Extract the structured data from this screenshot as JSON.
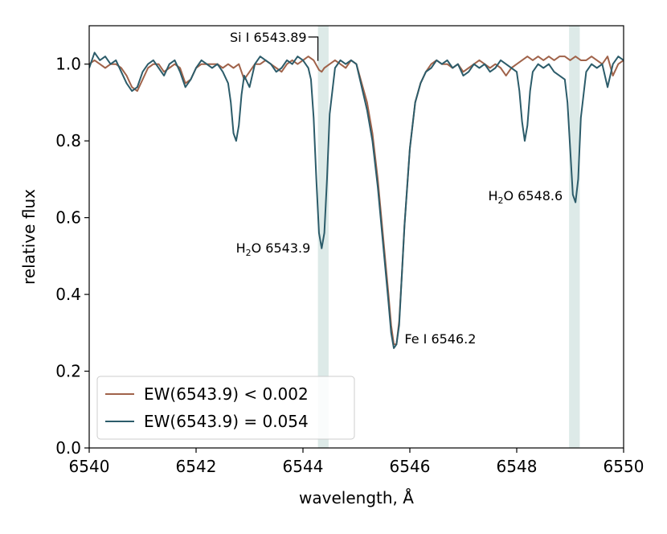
{
  "chart_data": {
    "type": "line",
    "xlabel": "wavelength, Å",
    "ylabel": "relative flux",
    "xlim": [
      6540,
      6550
    ],
    "ylim": [
      0.0,
      1.1
    ],
    "xticks": [
      6540,
      6542,
      6544,
      6546,
      6548,
      6550
    ],
    "yticks": [
      0.0,
      0.2,
      0.4,
      0.6,
      0.8,
      1.0
    ],
    "xtick_labels": [
      "6540",
      "6542",
      "6544",
      "6546",
      "6548",
      "6550"
    ],
    "ytick_labels": [
      "0.0",
      "0.2",
      "0.4",
      "0.6",
      "0.8",
      "1.0"
    ],
    "grid": false,
    "legend_position": "lower-left",
    "shaded_bands": [
      {
        "x0": 6544.28,
        "x1": 6544.48
      },
      {
        "x0": 6548.98,
        "x1": 6549.18
      }
    ],
    "annotations": [
      {
        "id": "si",
        "text": "Si I 6543.89",
        "x": 6544.28,
        "y": 1.0
      },
      {
        "id": "h2o1",
        "prefix": "H",
        "sub": "2",
        "suffix": "O 6543.9",
        "x": 6544.35,
        "y": 0.52
      },
      {
        "id": "fe",
        "text": "Fe I 6546.2",
        "x": 6545.72,
        "y": 0.26
      },
      {
        "id": "h2o2",
        "prefix": "H",
        "sub": "2",
        "suffix": "O 6548.6",
        "x": 6549.07,
        "y": 0.645
      }
    ],
    "series": [
      {
        "name": "EW(6543.9) < 0.002",
        "color": "#a0634a",
        "x": [
          6540.0,
          6540.1,
          6540.2,
          6540.3,
          6540.4,
          6540.5,
          6540.6,
          6540.7,
          6540.8,
          6540.9,
          6541.0,
          6541.1,
          6541.2,
          6541.3,
          6541.4,
          6541.5,
          6541.6,
          6541.7,
          6541.8,
          6541.9,
          6542.0,
          6542.1,
          6542.2,
          6542.3,
          6542.4,
          6542.5,
          6542.6,
          6542.7,
          6542.8,
          6542.9,
          6543.0,
          6543.1,
          6543.2,
          6543.3,
          6543.4,
          6543.5,
          6543.6,
          6543.7,
          6543.8,
          6543.9,
          6544.0,
          6544.1,
          6544.2,
          6544.3,
          6544.35,
          6544.4,
          6544.5,
          6544.6,
          6544.7,
          6544.8,
          6544.9,
          6545.0,
          6545.1,
          6545.2,
          6545.3,
          6545.4,
          6545.5,
          6545.6,
          6545.65,
          6545.7,
          6545.75,
          6545.8,
          6545.85,
          6545.9,
          6546.0,
          6546.1,
          6546.2,
          6546.3,
          6546.4,
          6546.5,
          6546.6,
          6546.7,
          6546.8,
          6546.9,
          6547.0,
          6547.1,
          6547.2,
          6547.3,
          6547.4,
          6547.5,
          6547.6,
          6547.7,
          6547.8,
          6547.9,
          6548.0,
          6548.1,
          6548.2,
          6548.3,
          6548.4,
          6548.5,
          6548.6,
          6548.7,
          6548.8,
          6548.9,
          6549.0,
          6549.1,
          6549.2,
          6549.3,
          6549.4,
          6549.5,
          6549.6,
          6549.7,
          6549.8,
          6549.9,
          6550.0
        ],
        "y": [
          1.0,
          1.01,
          1.0,
          0.99,
          1.0,
          1.0,
          0.99,
          0.97,
          0.94,
          0.93,
          0.96,
          0.99,
          1.0,
          1.0,
          0.98,
          0.99,
          1.0,
          0.99,
          0.95,
          0.96,
          0.99,
          1.0,
          1.0,
          1.0,
          1.0,
          0.99,
          1.0,
          0.99,
          1.0,
          0.96,
          0.98,
          1.0,
          1.0,
          1.01,
          1.0,
          0.99,
          0.98,
          1.0,
          1.01,
          1.0,
          1.01,
          1.02,
          1.01,
          0.985,
          0.98,
          0.99,
          1.0,
          1.01,
          1.0,
          0.99,
          1.01,
          1.0,
          0.95,
          0.9,
          0.82,
          0.7,
          0.55,
          0.4,
          0.32,
          0.27,
          0.27,
          0.33,
          0.45,
          0.58,
          0.78,
          0.9,
          0.95,
          0.98,
          1.0,
          1.01,
          1.0,
          1.0,
          0.99,
          1.0,
          0.98,
          0.99,
          1.0,
          1.01,
          1.0,
          0.99,
          1.0,
          0.99,
          0.97,
          0.99,
          1.0,
          1.01,
          1.02,
          1.01,
          1.02,
          1.01,
          1.02,
          1.01,
          1.02,
          1.02,
          1.01,
          1.02,
          1.01,
          1.01,
          1.02,
          1.01,
          1.0,
          1.02,
          0.97,
          1.0,
          1.01
        ]
      },
      {
        "name": "EW(6543.9) = 0.054",
        "color": "#2c5c6a",
        "x": [
          6540.0,
          6540.1,
          6540.2,
          6540.3,
          6540.4,
          6540.5,
          6540.6,
          6540.7,
          6540.8,
          6540.9,
          6541.0,
          6541.1,
          6541.2,
          6541.3,
          6541.4,
          6541.5,
          6541.6,
          6541.7,
          6541.8,
          6541.9,
          6542.0,
          6542.1,
          6542.2,
          6542.3,
          6542.4,
          6542.5,
          6542.6,
          6542.65,
          6542.7,
          6542.75,
          6542.8,
          6542.85,
          6542.9,
          6543.0,
          6543.1,
          6543.2,
          6543.3,
          6543.4,
          6543.5,
          6543.6,
          6543.7,
          6543.8,
          6543.9,
          6544.0,
          6544.1,
          6544.15,
          6544.2,
          6544.25,
          6544.3,
          6544.35,
          6544.4,
          6544.45,
          6544.5,
          6544.6,
          6544.7,
          6544.8,
          6544.9,
          6545.0,
          6545.1,
          6545.2,
          6545.3,
          6545.4,
          6545.5,
          6545.6,
          6545.65,
          6545.7,
          6545.75,
          6545.8,
          6545.85,
          6545.9,
          6546.0,
          6546.1,
          6546.2,
          6546.3,
          6546.4,
          6546.5,
          6546.6,
          6546.7,
          6546.8,
          6546.9,
          6547.0,
          6547.1,
          6547.2,
          6547.3,
          6547.4,
          6547.5,
          6547.6,
          6547.7,
          6547.8,
          6547.9,
          6548.0,
          6548.05,
          6548.1,
          6548.15,
          6548.2,
          6548.25,
          6548.3,
          6548.4,
          6548.5,
          6548.6,
          6548.7,
          6548.8,
          6548.9,
          6548.95,
          6549.0,
          6549.05,
          6549.1,
          6549.15,
          6549.2,
          6549.3,
          6549.4,
          6549.5,
          6549.6,
          6549.7,
          6549.8,
          6549.9,
          6550.0
        ],
        "y": [
          0.99,
          1.03,
          1.01,
          1.02,
          1.0,
          1.01,
          0.98,
          0.95,
          0.93,
          0.94,
          0.98,
          1.0,
          1.01,
          0.99,
          0.97,
          1.0,
          1.01,
          0.98,
          0.94,
          0.96,
          0.99,
          1.01,
          1.0,
          0.99,
          1.0,
          0.98,
          0.95,
          0.9,
          0.82,
          0.8,
          0.84,
          0.92,
          0.97,
          0.94,
          1.0,
          1.02,
          1.01,
          1.0,
          0.98,
          0.99,
          1.01,
          1.0,
          1.02,
          1.01,
          0.99,
          0.96,
          0.86,
          0.7,
          0.56,
          0.52,
          0.56,
          0.7,
          0.87,
          0.99,
          1.01,
          1.0,
          1.01,
          1.0,
          0.94,
          0.88,
          0.8,
          0.68,
          0.53,
          0.38,
          0.3,
          0.26,
          0.27,
          0.32,
          0.45,
          0.58,
          0.78,
          0.9,
          0.95,
          0.98,
          0.99,
          1.01,
          1.0,
          1.01,
          0.99,
          1.0,
          0.97,
          0.98,
          1.0,
          0.99,
          1.0,
          0.98,
          0.99,
          1.01,
          1.0,
          0.99,
          0.98,
          0.93,
          0.85,
          0.8,
          0.84,
          0.93,
          0.98,
          1.0,
          0.99,
          1.0,
          0.98,
          0.97,
          0.96,
          0.9,
          0.78,
          0.66,
          0.64,
          0.7,
          0.86,
          0.98,
          1.0,
          0.99,
          1.0,
          0.94,
          1.0,
          1.02,
          1.01
        ]
      }
    ]
  }
}
